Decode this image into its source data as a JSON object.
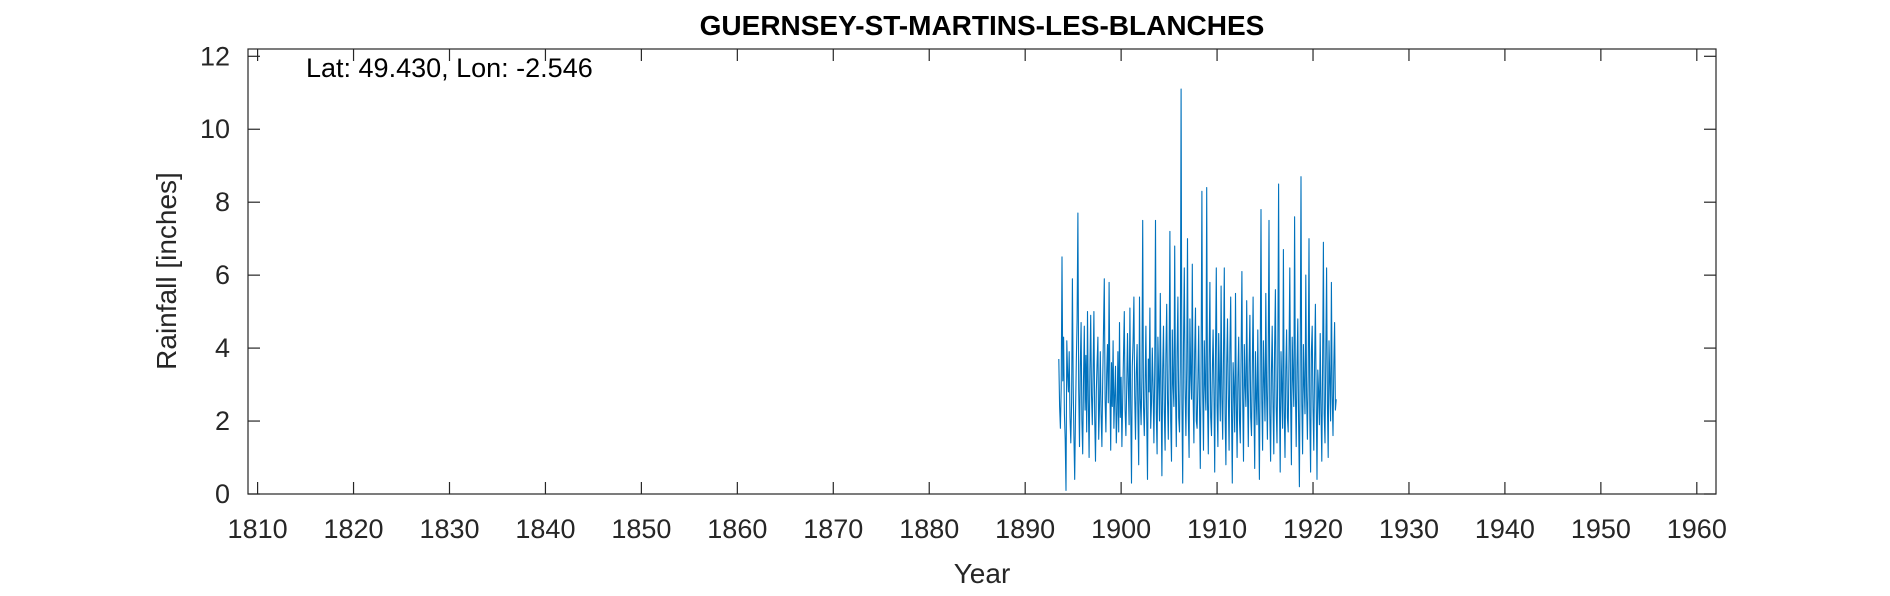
{
  "chart_data": {
    "type": "line",
    "title": "GUERNSEY-ST-MARTINS-LES-BLANCHES",
    "annotation": "Lat: 49.430, Lon: -2.546",
    "xlabel": "Year",
    "ylabel": "Rainfall [inches]",
    "xlim": [
      1809,
      1962
    ],
    "ylim": [
      0,
      12.2
    ],
    "xticks": [
      1810,
      1820,
      1830,
      1840,
      1850,
      1860,
      1870,
      1880,
      1890,
      1900,
      1910,
      1920,
      1930,
      1940,
      1950,
      1960
    ],
    "yticks": [
      0,
      2,
      4,
      6,
      8,
      10,
      12
    ],
    "grid": false,
    "series_color": "#0072BD",
    "series": [
      {
        "x_start": 1893.5,
        "x_step": 0.083333,
        "values": [
          3.7,
          2.4,
          1.8,
          2.9,
          6.5,
          3.1,
          4.3,
          2.2,
          1.5,
          0.1,
          4.2,
          3.3,
          2.8,
          3.9,
          2.1,
          1.4,
          2.5,
          5.9,
          3.0,
          1.6,
          0.4,
          2.2,
          3.6,
          4.8,
          7.7,
          2.9,
          1.3,
          3.5,
          4.7,
          2.0,
          1.1,
          3.1,
          4.6,
          2.3,
          3.8,
          1.7,
          5.0,
          2.6,
          1.0,
          3.4,
          4.9,
          2.7,
          1.9,
          3.3,
          5.0,
          2.1,
          0.9,
          2.8,
          3.6,
          4.3,
          1.5,
          2.4,
          3.9,
          2.2,
          1.3,
          3.1,
          4.5,
          5.9,
          2.6,
          1.7,
          3.3,
          4.1,
          2.5,
          5.8,
          2.9,
          1.2,
          3.6,
          2.4,
          4.2,
          1.8,
          2.7,
          3.5,
          1.4,
          2.2,
          3.9,
          1.7,
          4.7,
          2.1,
          3.2,
          1.3,
          2.6,
          3.8,
          5.0,
          2.3,
          1.6,
          2.9,
          4.4,
          3.0,
          1.9,
          5.1,
          2.4,
          0.3,
          3.5,
          4.2,
          5.4,
          2.7,
          1.5,
          3.3,
          4.1,
          2.2,
          0.8,
          5.4,
          2.6,
          1.9,
          3.2,
          7.5,
          2.4,
          1.6,
          3.0,
          4.6,
          2.1,
          0.4,
          3.7,
          2.8,
          5.1,
          1.8,
          2.5,
          4.0,
          2.9,
          1.4,
          3.3,
          7.5,
          2.2,
          1.1,
          4.3,
          3.1,
          2.0,
          5.5,
          2.7,
          0.5,
          3.4,
          4.6,
          2.3,
          1.2,
          3.8,
          5.2,
          2.6,
          1.5,
          3.6,
          7.2,
          2.0,
          0.9,
          4.5,
          3.0,
          2.4,
          6.8,
          2.8,
          1.3,
          3.9,
          5.4,
          2.1,
          1.7,
          3.5,
          11.1,
          2.5,
          0.3,
          4.1,
          6.2,
          2.9,
          1.6,
          3.4,
          7.0,
          2.2,
          1.0,
          4.8,
          3.3,
          2.6,
          6.3,
          2.7,
          1.4,
          3.9,
          5.1,
          2.0,
          1.8,
          3.1,
          4.6,
          2.4,
          0.7,
          3.6,
          8.3,
          2.8,
          1.2,
          4.2,
          3.0,
          2.3,
          8.4,
          2.5,
          1.1,
          3.7,
          5.8,
          2.1,
          1.6,
          3.3,
          4.5,
          2.9,
          0.6,
          3.9,
          6.2,
          2.4,
          1.3,
          4.4,
          3.1,
          2.0,
          5.7,
          2.6,
          1.5,
          3.8,
          6.2,
          2.2,
          0.8,
          3.5,
          4.8,
          2.7,
          1.2,
          4.0,
          5.4,
          2.3,
          0.3,
          3.6,
          2.9,
          1.7,
          5.5,
          2.5,
          1.0,
          3.2,
          4.3,
          2.0,
          1.4,
          3.8,
          6.1,
          2.6,
          0.9,
          4.1,
          3.0,
          2.4,
          5.3,
          2.8,
          1.3,
          3.6,
          4.9,
          2.1,
          1.6,
          3.4,
          5.4,
          2.5,
          0.7,
          3.9,
          2.7,
          1.9,
          4.5,
          2.3,
          0.4,
          3.5,
          7.8,
          2.6,
          1.2,
          4.2,
          3.1,
          2.0,
          5.5,
          2.8,
          1.5,
          3.7,
          7.5,
          2.2,
          0.9,
          3.3,
          4.6,
          2.5,
          1.1,
          4.0,
          5.6,
          2.4,
          1.4,
          3.6,
          8.5,
          2.7,
          0.6,
          3.9,
          2.9,
          1.8,
          6.7,
          2.3,
          1.0,
          3.4,
          4.5,
          2.1,
          1.7,
          3.8,
          6.2,
          2.6,
          0.8,
          4.3,
          3.2,
          2.4,
          7.6,
          2.8,
          1.3,
          3.5,
          4.8,
          2.0,
          0.2,
          3.7,
          8.7,
          2.5,
          1.1,
          4.1,
          3.0,
          2.2,
          6.0,
          2.7,
          1.5,
          3.3,
          7.0,
          2.1,
          0.6,
          3.9,
          4.6,
          2.4,
          1.2,
          3.6,
          5.2,
          2.6,
          0.4,
          3.4,
          2.8,
          1.9,
          4.4,
          2.3,
          0.9,
          3.5,
          6.9,
          2.2,
          1.4,
          3.8,
          6.2,
          2.5,
          1.0,
          4.2,
          3.1,
          2.0,
          5.8,
          2.7,
          1.6,
          3.5,
          4.7,
          2.3,
          2.6
        ]
      }
    ]
  }
}
